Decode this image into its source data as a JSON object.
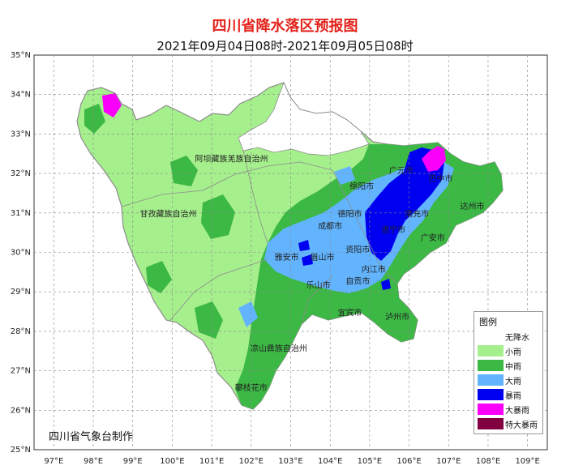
{
  "title": "四川省降水落区预报图",
  "subtitle": "2021年09月04日08时-2021年09月05日08时",
  "credit": "四川省气象台制作",
  "axes": {
    "lat_labels": [
      "35°N",
      "34°N",
      "33°N",
      "32°N",
      "31°N",
      "30°N",
      "29°N",
      "28°N",
      "27°N",
      "26°N",
      "25°N"
    ],
    "lon_labels": [
      "97°E",
      "98°E",
      "99°E",
      "100°E",
      "101°E",
      "102°E",
      "103°E",
      "104°E",
      "105°E",
      "106°E",
      "107°E",
      "108°E",
      "109°E"
    ]
  },
  "cities": [
    {
      "name": "阿坝藏族羌族自治州",
      "lon": 101.5,
      "lat": 32.3
    },
    {
      "name": "甘孜藏族自治州",
      "lon": 99.9,
      "lat": 30.9
    },
    {
      "name": "凉山彝族自治州",
      "lon": 102.7,
      "lat": 27.5
    },
    {
      "name": "攀枝花市",
      "lon": 102.0,
      "lat": 26.5
    },
    {
      "name": "广元市",
      "lon": 105.8,
      "lat": 32.0
    },
    {
      "name": "巴中市",
      "lon": 106.8,
      "lat": 31.8
    },
    {
      "name": "绵阳市",
      "lon": 104.8,
      "lat": 31.6
    },
    {
      "name": "南充市",
      "lon": 106.2,
      "lat": 30.9
    },
    {
      "name": "达州市",
      "lon": 107.6,
      "lat": 31.1
    },
    {
      "name": "德阳市",
      "lon": 104.5,
      "lat": 30.9
    },
    {
      "name": "成都市",
      "lon": 104.0,
      "lat": 30.6
    },
    {
      "name": "遂宁市",
      "lon": 105.6,
      "lat": 30.5
    },
    {
      "name": "广安市",
      "lon": 106.6,
      "lat": 30.3
    },
    {
      "name": "雅安市",
      "lon": 102.9,
      "lat": 29.8
    },
    {
      "name": "眉山市",
      "lon": 103.8,
      "lat": 29.8
    },
    {
      "name": "资阳市",
      "lon": 104.7,
      "lat": 30.0
    },
    {
      "name": "内江市",
      "lon": 105.1,
      "lat": 29.5
    },
    {
      "name": "乐山市",
      "lon": 103.7,
      "lat": 29.1
    },
    {
      "name": "自贡市",
      "lon": 104.7,
      "lat": 29.2
    },
    {
      "name": "宜宾市",
      "lon": 104.5,
      "lat": 28.4
    },
    {
      "name": "泸州市",
      "lon": 105.7,
      "lat": 28.3
    }
  ],
  "legend": {
    "title": "图例",
    "items": [
      {
        "label": "无降水",
        "color": "#ffffff"
      },
      {
        "label": "小雨",
        "color": "#a6ef8d"
      },
      {
        "label": "中雨",
        "color": "#3cb845"
      },
      {
        "label": "大雨",
        "color": "#62b4ff"
      },
      {
        "label": "暴雨",
        "color": "#0000f0"
      },
      {
        "label": "大暴雨",
        "color": "#fa00fa"
      },
      {
        "label": "特大暴雨",
        "color": "#800040"
      }
    ]
  },
  "colors": {
    "title": "#e3231b",
    "grid": "#888888",
    "boundary": "#8c8c8c"
  }
}
